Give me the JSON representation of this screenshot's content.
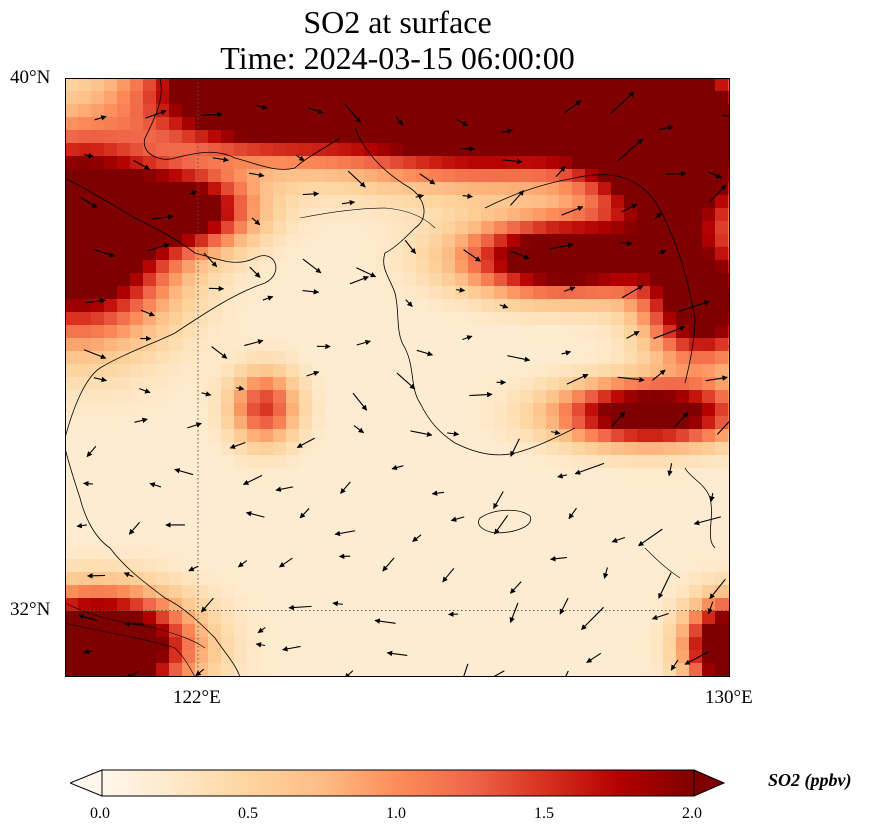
{
  "title": {
    "line1": "SO2 at surface",
    "line2": "Time: 2024-03-15 06:00:00"
  },
  "map": {
    "lon_range": [
      120,
      130
    ],
    "lat_range": [
      31,
      40
    ],
    "lat_labels": [
      {
        "lat": 40,
        "text": "40°N"
      },
      {
        "lat": 32,
        "text": "32°N"
      }
    ],
    "lon_labels": [
      {
        "lon": 122,
        "text": "122°E"
      },
      {
        "lon": 130,
        "text": "130°E"
      }
    ],
    "gridlines": {
      "lon": [
        122
      ],
      "lat": [
        32
      ]
    },
    "field": "SO2 concentration (ppbv), shaded",
    "vectors": "surface wind arrows"
  },
  "colorbar": {
    "label": "SO2 (ppbv)",
    "vmin": 0.0,
    "vmax": 2.0,
    "extend": "both",
    "colormap": "OrRd",
    "ticks": [
      "0.0",
      "0.5",
      "1.0",
      "1.5",
      "2.0"
    ],
    "colors": [
      "#fff7ec",
      "#fee8c8",
      "#fdd49e",
      "#fdbb84",
      "#fc8d59",
      "#ef6548",
      "#d7301f",
      "#b30000",
      "#7f0000"
    ]
  }
}
